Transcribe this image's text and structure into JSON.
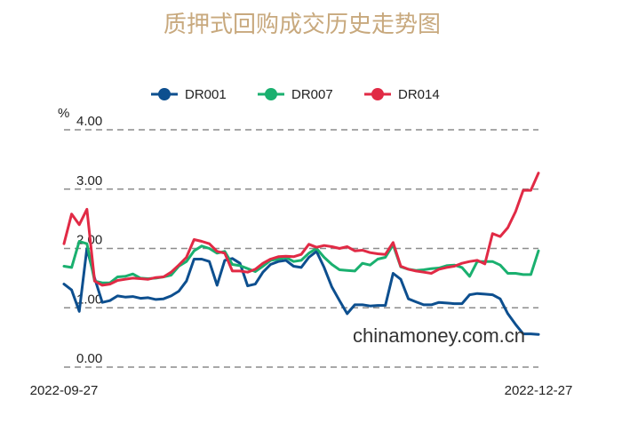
{
  "chart_data": {
    "type": "line",
    "title": "质押式回购成交历史走势图",
    "ylabel": "%",
    "ylim": [
      0,
      4
    ],
    "y_ticks": [
      "0.00",
      "1.00",
      "2.00",
      "3.00",
      "4.00"
    ],
    "x_tick_labels": [
      "2022-09-27",
      "2022-12-27"
    ],
    "grid": "horizontal-dashed",
    "legend": "top",
    "watermark": "chinamoney.com.cn",
    "series": [
      {
        "name": "DR001",
        "color": "#0d4f8f",
        "values": [
          1.4,
          1.3,
          0.94,
          2.0,
          1.5,
          1.09,
          1.12,
          1.2,
          1.18,
          1.19,
          1.16,
          1.17,
          1.14,
          1.15,
          1.2,
          1.28,
          1.45,
          1.82,
          1.82,
          1.78,
          1.38,
          1.8,
          1.83,
          1.75,
          1.37,
          1.4,
          1.6,
          1.73,
          1.78,
          1.8,
          1.7,
          1.68,
          1.85,
          1.95,
          1.68,
          1.35,
          1.12,
          0.9,
          1.05,
          1.05,
          1.03,
          1.04,
          1.04,
          1.58,
          1.48,
          1.15,
          1.1,
          1.05,
          1.05,
          1.09,
          1.08,
          1.07,
          1.07,
          1.22,
          1.24,
          1.23,
          1.22,
          1.15,
          0.9,
          0.72,
          0.56,
          0.56,
          0.55
        ]
      },
      {
        "name": "DR007",
        "color": "#1ab06f",
        "values": [
          1.7,
          1.68,
          2.12,
          2.08,
          1.45,
          1.42,
          1.42,
          1.52,
          1.53,
          1.57,
          1.5,
          1.49,
          1.5,
          1.52,
          1.55,
          1.7,
          1.78,
          1.96,
          2.04,
          2.0,
          1.92,
          1.95,
          1.73,
          1.71,
          1.66,
          1.61,
          1.7,
          1.8,
          1.82,
          1.85,
          1.78,
          1.8,
          1.92,
          2.0,
          1.85,
          1.73,
          1.64,
          1.63,
          1.62,
          1.75,
          1.72,
          1.82,
          1.85,
          2.06,
          1.69,
          1.65,
          1.63,
          1.64,
          1.66,
          1.67,
          1.71,
          1.72,
          1.68,
          1.53,
          1.78,
          1.78,
          1.78,
          1.72,
          1.58,
          1.58,
          1.56,
          1.56,
          1.96
        ]
      },
      {
        "name": "DR014",
        "color": "#e12a45",
        "values": [
          2.08,
          2.58,
          2.4,
          2.66,
          1.45,
          1.38,
          1.4,
          1.46,
          1.48,
          1.5,
          1.49,
          1.48,
          1.51,
          1.52,
          1.6,
          1.72,
          1.85,
          2.15,
          2.12,
          2.08,
          1.95,
          1.92,
          1.62,
          1.62,
          1.6,
          1.65,
          1.75,
          1.82,
          1.86,
          1.87,
          1.86,
          1.9,
          2.07,
          2.02,
          2.05,
          2.03,
          2.0,
          2.03,
          1.96,
          1.97,
          1.93,
          1.91,
          1.9,
          2.1,
          1.7,
          1.65,
          1.62,
          1.6,
          1.58,
          1.65,
          1.68,
          1.7,
          1.75,
          1.78,
          1.8,
          1.74,
          2.25,
          2.2,
          2.35,
          2.62,
          2.98,
          2.98,
          3.27
        ]
      }
    ]
  }
}
